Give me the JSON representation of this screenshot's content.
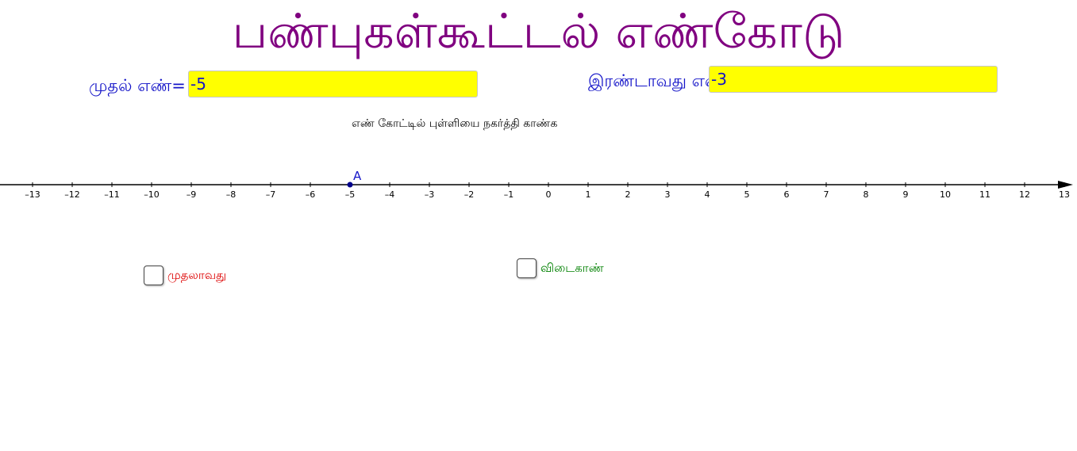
{
  "title": "பண்புகள்கூட்டல் எண்கோடு",
  "fields": {
    "first_label": "முதல் எண்=",
    "first_value": "-5",
    "second_label": "இரண்டாவது எண்",
    "second_value": "-3"
  },
  "instruction": "எண் கோட்டில் புள்ளியை நகர்த்தி காண்க",
  "number_line": {
    "point_label": "A",
    "point_value": -5,
    "ticks": [
      -13,
      -12,
      -11,
      -10,
      -9,
      -8,
      -7,
      -6,
      -5,
      -4,
      -3,
      -2,
      -1,
      0,
      1,
      2,
      3,
      4,
      5,
      6,
      7,
      8,
      9,
      10,
      11,
      12,
      13
    ],
    "point_color": "#00008b"
  },
  "checkboxes": {
    "left_label": "முதலாவது",
    "left_color": "#dd0000",
    "right_label": "விடைகாண்",
    "right_color": "#008000"
  },
  "colors": {
    "title": "#800080",
    "field_label": "#1414c8",
    "field_bg": "#ffff00"
  }
}
